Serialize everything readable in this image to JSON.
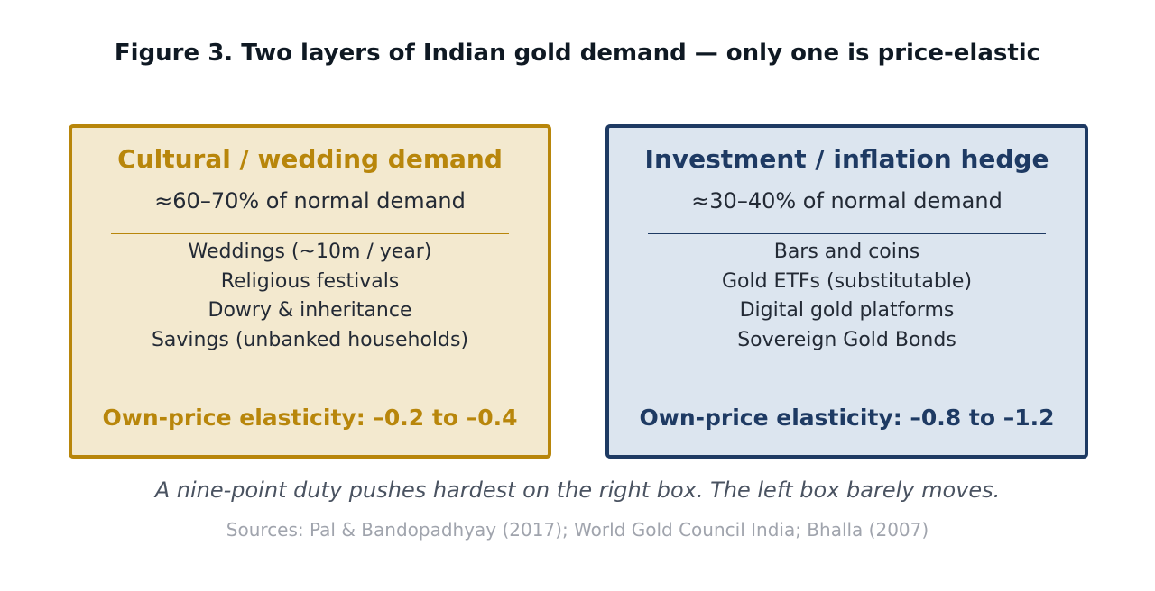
{
  "title": "Figure 3. Two layers of Indian gold demand — only one is price-elastic",
  "colors": {
    "cultural_accent": "#b8860b",
    "cultural_fill": "#f3e9cf",
    "investment_accent": "#1e3a63",
    "investment_fill": "#dce5ef",
    "title_text": "#0f1923",
    "body_text": "#232a35",
    "caption_text": "#4a5361",
    "sources_text": "#a0a4ad"
  },
  "boxes": [
    {
      "heading": "Cultural / wedding demand",
      "share": "≈60–70% of normal demand",
      "items": [
        "Weddings (~10m / year)",
        "Religious festivals",
        "Dowry & inheritance",
        "Savings (unbanked households)"
      ],
      "elasticity": "Own-price elasticity: –0.2 to –0.4"
    },
    {
      "heading": "Investment / inflation hedge",
      "share": "≈30–40% of normal demand",
      "items": [
        "Bars and coins",
        "Gold ETFs (substitutable)",
        "Digital gold platforms",
        "Sovereign Gold Bonds"
      ],
      "elasticity": "Own-price elasticity: –0.8 to –1.2"
    }
  ],
  "caption": "A nine-point duty pushes hardest on the right box. The left box barely moves.",
  "sources": "Sources: Pal & Bandopadhyay (2017); World Gold Council India; Bhalla (2007)"
}
